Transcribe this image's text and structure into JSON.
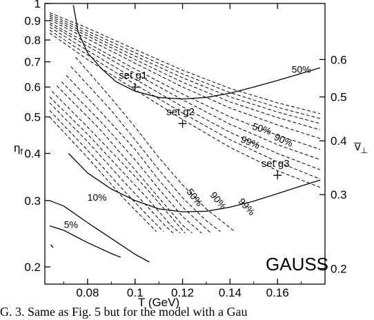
{
  "chart_data": {
    "type": "line",
    "xlabel": "T  (GeV)",
    "ylabel": "η_f",
    "y2label": "v̄⊥",
    "xlim": [
      0.062,
      0.18
    ],
    "ylim": [
      0.18,
      1.0
    ],
    "yscale": "log",
    "grid": false,
    "x_ticks": [
      "0.08",
      "0.1",
      "0.12",
      "0.14",
      "0.16"
    ],
    "x_tick_values": [
      0.08,
      0.1,
      0.12,
      0.14,
      0.16
    ],
    "y_ticks": [
      "0.2",
      "0.3",
      "0.4",
      "0.5",
      "0.6",
      "0.7",
      "0.8",
      "0.9",
      "1"
    ],
    "y_tick_values": [
      0.2,
      0.3,
      0.4,
      0.5,
      0.6,
      0.7,
      0.8,
      0.9,
      1.0
    ],
    "y2_ticks": [
      "0.2",
      "0.3",
      "0.4",
      "0.5",
      "0.6"
    ],
    "y2_tick_eta": [
      0.198,
      0.311,
      0.432,
      0.565,
      0.71
    ],
    "watermark": "GAUSS",
    "points": [
      {
        "label": "set g1",
        "T": 0.1,
        "eta": 0.6
      },
      {
        "label": "set g2",
        "T": 0.12,
        "eta": 0.48
      },
      {
        "label": "set g3",
        "T": 0.16,
        "eta": 0.35
      }
    ],
    "solid_curves": [
      {
        "label": "50%",
        "points": [
          [
            0.074,
            0.99
          ],
          [
            0.076,
            0.84
          ],
          [
            0.08,
            0.74
          ],
          [
            0.086,
            0.67
          ],
          [
            0.092,
            0.62
          ],
          [
            0.1,
            0.585
          ],
          [
            0.11,
            0.563
          ],
          [
            0.12,
            0.558
          ],
          [
            0.13,
            0.563
          ],
          [
            0.14,
            0.578
          ],
          [
            0.15,
            0.6
          ],
          [
            0.16,
            0.625
          ],
          [
            0.17,
            0.652
          ],
          [
            0.178,
            0.675
          ]
        ]
      },
      {
        "label": "",
        "points": [
          [
            0.072,
            0.4
          ],
          [
            0.08,
            0.355
          ],
          [
            0.09,
            0.322
          ],
          [
            0.1,
            0.3
          ],
          [
            0.11,
            0.285
          ],
          [
            0.12,
            0.28
          ],
          [
            0.13,
            0.281
          ],
          [
            0.14,
            0.288
          ],
          [
            0.15,
            0.299
          ],
          [
            0.16,
            0.313
          ],
          [
            0.17,
            0.328
          ],
          [
            0.178,
            0.34
          ]
        ]
      },
      {
        "label": "10%",
        "points": [
          [
            0.064,
            0.3
          ],
          [
            0.07,
            0.29
          ],
          [
            0.08,
            0.262
          ],
          [
            0.09,
            0.238
          ],
          [
            0.1,
            0.216
          ],
          [
            0.106,
            0.206
          ]
        ]
      },
      {
        "label": "5%",
        "points": [
          [
            0.064,
            0.257
          ],
          [
            0.07,
            0.25
          ],
          [
            0.08,
            0.232
          ],
          [
            0.09,
            0.217
          ],
          [
            0.094,
            0.212
          ]
        ]
      }
    ],
    "dashed_families": [
      {
        "labels": [
          {
            "text": "50%",
            "T": 0.153,
            "eta": 0.456,
            "angle": 17
          },
          {
            "text": "90%",
            "T": 0.162,
            "eta": 0.426,
            "angle": 24
          },
          {
            "text": "99%",
            "T": 0.148,
            "eta": 0.42,
            "angle": 22
          }
        ],
        "curves": [
          [
            [
              0.064,
              0.945
            ],
            [
              0.08,
              0.86
            ],
            [
              0.1,
              0.755
            ],
            [
              0.12,
              0.665
            ],
            [
              0.14,
              0.595
            ],
            [
              0.16,
              0.545
            ],
            [
              0.178,
              0.51
            ]
          ],
          [
            [
              0.064,
              0.935
            ],
            [
              0.08,
              0.845
            ],
            [
              0.1,
              0.74
            ],
            [
              0.12,
              0.65
            ],
            [
              0.14,
              0.58
            ],
            [
              0.16,
              0.53
            ],
            [
              0.178,
              0.495
            ]
          ],
          [
            [
              0.064,
              0.925
            ],
            [
              0.08,
              0.832
            ],
            [
              0.1,
              0.725
            ],
            [
              0.12,
              0.635
            ],
            [
              0.14,
              0.565
            ],
            [
              0.16,
              0.515
            ],
            [
              0.178,
              0.48
            ]
          ],
          [
            [
              0.064,
              0.915
            ],
            [
              0.08,
              0.82
            ],
            [
              0.1,
              0.71
            ],
            [
              0.12,
              0.618
            ],
            [
              0.14,
              0.548
            ],
            [
              0.16,
              0.498
            ],
            [
              0.178,
              0.462
            ]
          ],
          [
            [
              0.064,
              0.905
            ],
            [
              0.08,
              0.805
            ],
            [
              0.1,
              0.694
            ],
            [
              0.12,
              0.6
            ],
            [
              0.14,
              0.528
            ],
            [
              0.16,
              0.476
            ],
            [
              0.178,
              0.438
            ]
          ],
          [
            [
              0.064,
              0.89
            ],
            [
              0.08,
              0.785
            ],
            [
              0.1,
              0.67
            ],
            [
              0.12,
              0.575
            ],
            [
              0.14,
              0.5
            ],
            [
              0.16,
              0.447
            ],
            [
              0.178,
              0.41
            ]
          ],
          [
            [
              0.064,
              0.88
            ],
            [
              0.08,
              0.77
            ],
            [
              0.1,
              0.652
            ],
            [
              0.12,
              0.555
            ],
            [
              0.14,
              0.478
            ],
            [
              0.16,
              0.422
            ],
            [
              0.178,
              0.385
            ]
          ],
          [
            [
              0.064,
              0.865
            ],
            [
              0.08,
              0.75
            ],
            [
              0.1,
              0.63
            ],
            [
              0.12,
              0.532
            ],
            [
              0.14,
              0.455
            ],
            [
              0.16,
              0.4
            ],
            [
              0.178,
              0.362
            ]
          ],
          [
            [
              0.064,
              0.85
            ],
            [
              0.08,
              0.73
            ],
            [
              0.1,
              0.61
            ],
            [
              0.12,
              0.512
            ],
            [
              0.14,
              0.435
            ],
            [
              0.16,
              0.38
            ],
            [
              0.178,
              0.342
            ]
          ],
          [
            [
              0.064,
              0.835
            ],
            [
              0.08,
              0.71
            ],
            [
              0.1,
              0.59
            ],
            [
              0.12,
              0.492
            ],
            [
              0.14,
              0.415
            ],
            [
              0.16,
              0.36
            ],
            [
              0.178,
              0.325
            ]
          ]
        ]
      },
      {
        "labels": [
          {
            "text": "50%",
            "T": 0.124,
            "eta": 0.302,
            "angle": 52
          },
          {
            "text": "90%",
            "T": 0.134,
            "eta": 0.296,
            "angle": 50
          },
          {
            "text": "99%",
            "T": 0.146,
            "eta": 0.285,
            "angle": 48
          }
        ],
        "curves": [
          [
            [
              0.075,
              0.72
            ],
            [
              0.09,
              0.56
            ],
            [
              0.1,
              0.47
            ],
            [
              0.11,
              0.39
            ],
            [
              0.12,
              0.33
            ],
            [
              0.13,
              0.285
            ],
            [
              0.142,
              0.248
            ]
          ],
          [
            [
              0.073,
              0.68
            ],
            [
              0.09,
              0.52
            ],
            [
              0.1,
              0.435
            ],
            [
              0.11,
              0.362
            ],
            [
              0.12,
              0.305
            ],
            [
              0.13,
              0.265
            ],
            [
              0.136,
              0.248
            ]
          ],
          [
            [
              0.071,
              0.645
            ],
            [
              0.085,
              0.52
            ],
            [
              0.1,
              0.41
            ],
            [
              0.11,
              0.34
            ],
            [
              0.12,
              0.288
            ],
            [
              0.13,
              0.252
            ],
            [
              0.132,
              0.246
            ]
          ],
          [
            [
              0.069,
              0.62
            ],
            [
              0.085,
              0.49
            ],
            [
              0.1,
              0.385
            ],
            [
              0.11,
              0.322
            ],
            [
              0.12,
              0.272
            ],
            [
              0.128,
              0.246
            ]
          ],
          [
            [
              0.067,
              0.605
            ],
            [
              0.085,
              0.465
            ],
            [
              0.1,
              0.362
            ],
            [
              0.11,
              0.305
            ],
            [
              0.12,
              0.258
            ],
            [
              0.124,
              0.246
            ]
          ],
          [
            [
              0.065,
              0.585
            ],
            [
              0.08,
              0.47
            ],
            [
              0.095,
              0.375
            ],
            [
              0.105,
              0.322
            ],
            [
              0.115,
              0.272
            ],
            [
              0.121,
              0.246
            ]
          ],
          [
            [
              0.064,
              0.565
            ],
            [
              0.08,
              0.45
            ],
            [
              0.095,
              0.356
            ],
            [
              0.105,
              0.305
            ],
            [
              0.115,
              0.258
            ],
            [
              0.119,
              0.246
            ]
          ],
          [
            [
              0.064,
              0.545
            ],
            [
              0.08,
              0.43
            ],
            [
              0.095,
              0.338
            ],
            [
              0.105,
              0.29
            ],
            [
              0.113,
              0.256
            ],
            [
              0.116,
              0.246
            ]
          ],
          [
            [
              0.064,
              0.52
            ],
            [
              0.08,
              0.408
            ],
            [
              0.095,
              0.32
            ],
            [
              0.105,
              0.275
            ],
            [
              0.112,
              0.248
            ]
          ],
          [
            [
              0.064,
              0.5
            ],
            [
              0.08,
              0.39
            ],
            [
              0.095,
              0.305
            ],
            [
              0.102,
              0.275
            ],
            [
              0.109,
              0.248
            ]
          ]
        ]
      }
    ],
    "labels": [
      {
        "text": "50%",
        "T": 0.17,
        "eta": 0.655
      },
      {
        "text": "10%",
        "T": 0.084,
        "eta": 0.3
      },
      {
        "text": "5%",
        "T": 0.073,
        "eta": 0.254
      }
    ],
    "stray_tick": [
      [
        0.0645,
        0.229
      ],
      [
        0.0655,
        0.225
      ]
    ]
  },
  "caption": "G. 3. Same as Fig. 5 but for the model with a Gau"
}
